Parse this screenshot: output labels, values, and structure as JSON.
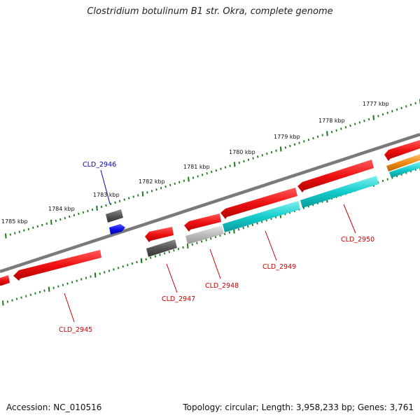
{
  "title": "Clostridium botulinum B1 str. Okra, complete genome",
  "footer": {
    "accession": "Accession: NC_010516",
    "topology": "Topology: circular; Length: 3,958,233 bp; Genes: 3,761"
  },
  "colors": {
    "backbone": "#7a7a7a",
    "ticks": "#1a7a1a",
    "gene_red": "#ee1111",
    "gene_cyan": "#14cccc",
    "gene_gray": "#555555",
    "gene_lightgray": "#bbbbbb",
    "gene_blue": "#1010ee",
    "gene_orange": "#f08a10",
    "label_red": "#cc0000",
    "label_blue": "#0000bb"
  },
  "ruler_labels": [
    "1785 kbp",
    "1784 kbp",
    "1783 kbp",
    "1782 kbp",
    "1781 kbp",
    "1780 kbp",
    "1779 kbp",
    "1778 kbp",
    "1777 kbp"
  ],
  "gene_labels": [
    "CLD_2945",
    "CLD_2946",
    "CLD_2947",
    "CLD_2948",
    "CLD_2949",
    "CLD_2950"
  ]
}
